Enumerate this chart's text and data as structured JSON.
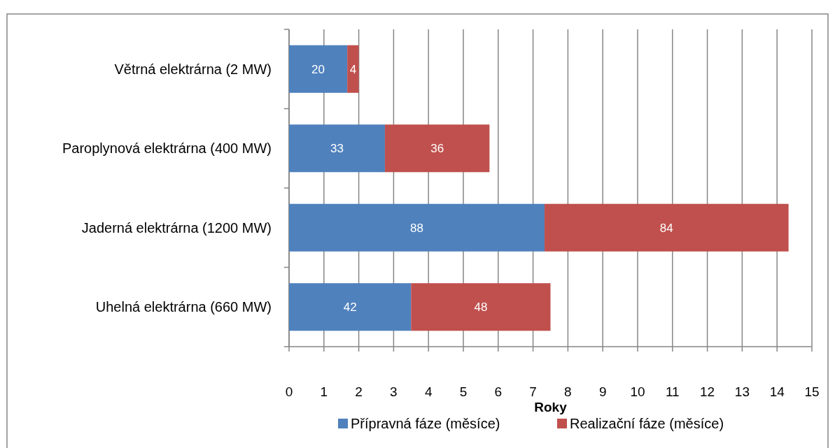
{
  "chart_data": {
    "type": "bar",
    "orientation": "horizontal",
    "stacked": true,
    "xlabel": "Roky",
    "categories": [
      "Větrná elektrárna (2 MW)",
      "Paroplynová elektrárna (400 MW)",
      "Jaderná elektrárna (1200 MW)",
      "Uhelná elektrárna (660 MW)"
    ],
    "series": [
      {
        "name": "Přípravná fáze (měsíce)",
        "color": "#4f81bd",
        "values": [
          1.67,
          2.75,
          7.33,
          3.5
        ]
      },
      {
        "name": "Realizační fáze (měsíce)",
        "color": "#c0504d",
        "values": [
          0.33,
          3,
          7,
          4
        ]
      }
    ],
    "annotations": [
      "20",
      "4",
      "33",
      "36",
      "88",
      "84",
      "42",
      "48"
    ],
    "xlim": [
      0,
      15
    ],
    "xticks": [
      0,
      1,
      2,
      3,
      4,
      5,
      6,
      7,
      8,
      9,
      10,
      11,
      12,
      13,
      14,
      15
    ],
    "grid": "x",
    "legend": "bottom"
  }
}
